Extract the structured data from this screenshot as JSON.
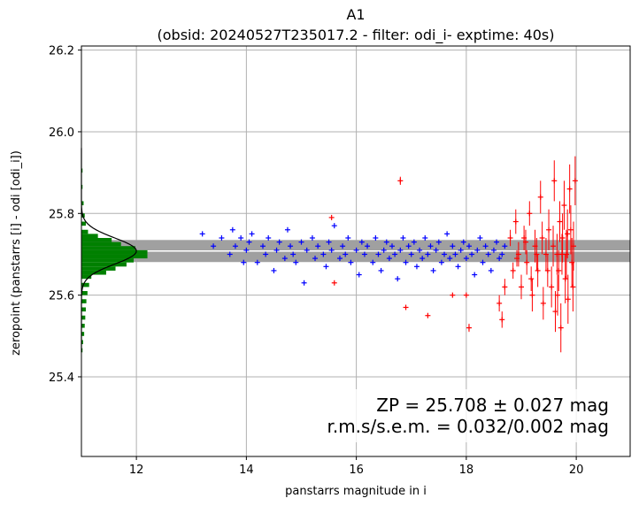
{
  "chart_data": {
    "type": "scatter",
    "title": "A1",
    "subtitle": "(obsid: 20240527T235017.2 - filter: odi_i- exptime: 40s)",
    "xlabel": "panstarrs magnitude in i",
    "ylabel": "zeropoint (panstarrs [i] - odi [odi_i])",
    "xlim": [
      11.0,
      20.98
    ],
    "ylim": [
      25.205,
      26.21
    ],
    "xticks": [
      "12",
      "14",
      "16",
      "18",
      "20"
    ],
    "yticks": [
      "25.4",
      "25.6",
      "25.8",
      "26.0",
      "26.2"
    ],
    "xtick_values": [
      12,
      14,
      16,
      18,
      20
    ],
    "ytick_values": [
      25.4,
      25.6,
      25.8,
      26.0,
      26.2
    ],
    "grid": true,
    "zeropoint": 25.708,
    "zeropoint_band": [
      25.681,
      25.735
    ],
    "annotation_lines": [
      "ZP = 25.708 ± 0.027 mag",
      "r.m.s/s.e.m. = 0.032/0.002 mag"
    ],
    "colors": {
      "bright_stars": "#0000ff",
      "faint_stars": "#ff0000",
      "histogram": "#008000",
      "band": "#a0a0a0",
      "zp_line": "#ffffff",
      "gaussian": "#000000",
      "grid": "#b0b0b0"
    },
    "histogram": {
      "bin_width": 0.01,
      "bins": [
        {
          "y": 25.46,
          "count": 0.02
        },
        {
          "y": 25.48,
          "count": 0.03
        },
        {
          "y": 25.5,
          "count": 0.05
        },
        {
          "y": 25.52,
          "count": 0.06
        },
        {
          "y": 25.54,
          "count": 0.07
        },
        {
          "y": 25.56,
          "count": 0.08
        },
        {
          "y": 25.58,
          "count": 0.09
        },
        {
          "y": 25.6,
          "count": 0.11
        },
        {
          "y": 25.62,
          "count": 0.14
        },
        {
          "y": 25.64,
          "count": 0.18
        },
        {
          "y": 25.65,
          "count": 0.45
        },
        {
          "y": 25.66,
          "count": 0.62
        },
        {
          "y": 25.67,
          "count": 0.82
        },
        {
          "y": 25.68,
          "count": 0.95
        },
        {
          "y": 25.69,
          "count": 1.2
        },
        {
          "y": 25.7,
          "count": 1.2
        },
        {
          "y": 25.71,
          "count": 0.98
        },
        {
          "y": 25.72,
          "count": 0.72
        },
        {
          "y": 25.73,
          "count": 0.55
        },
        {
          "y": 25.74,
          "count": 0.3
        },
        {
          "y": 25.75,
          "count": 0.12
        },
        {
          "y": 25.77,
          "count": 0.08
        },
        {
          "y": 25.79,
          "count": 0.06
        },
        {
          "y": 25.82,
          "count": 0.04
        },
        {
          "y": 25.86,
          "count": 0.02
        },
        {
          "y": 25.9,
          "count": 0.02
        }
      ]
    },
    "series": [
      {
        "color": "#0000ff",
        "points": [
          [
            13.2,
            25.75
          ],
          [
            13.4,
            25.72
          ],
          [
            13.55,
            25.74
          ],
          [
            13.7,
            25.7
          ],
          [
            13.75,
            25.76
          ],
          [
            13.8,
            25.72
          ],
          [
            13.9,
            25.74
          ],
          [
            13.95,
            25.68
          ],
          [
            14.0,
            25.71
          ],
          [
            14.05,
            25.73
          ],
          [
            14.1,
            25.75
          ],
          [
            14.2,
            25.68
          ],
          [
            14.3,
            25.72
          ],
          [
            14.35,
            25.7
          ],
          [
            14.4,
            25.74
          ],
          [
            14.5,
            25.66
          ],
          [
            14.55,
            25.71
          ],
          [
            14.6,
            25.73
          ],
          [
            14.7,
            25.69
          ],
          [
            14.75,
            25.76
          ],
          [
            14.8,
            25.72
          ],
          [
            14.85,
            25.7
          ],
          [
            14.9,
            25.68
          ],
          [
            15.0,
            25.73
          ],
          [
            15.05,
            25.63
          ],
          [
            15.1,
            25.71
          ],
          [
            15.2,
            25.74
          ],
          [
            15.25,
            25.69
          ],
          [
            15.3,
            25.72
          ],
          [
            15.4,
            25.7
          ],
          [
            15.45,
            25.67
          ],
          [
            15.5,
            25.73
          ],
          [
            15.55,
            25.71
          ],
          [
            15.6,
            25.77
          ],
          [
            15.7,
            25.69
          ],
          [
            15.75,
            25.72
          ],
          [
            15.8,
            25.7
          ],
          [
            15.85,
            25.74
          ],
          [
            15.9,
            25.68
          ],
          [
            16.0,
            25.71
          ],
          [
            16.05,
            25.65
          ],
          [
            16.1,
            25.73
          ],
          [
            16.15,
            25.7
          ],
          [
            16.2,
            25.72
          ],
          [
            16.3,
            25.68
          ],
          [
            16.35,
            25.74
          ],
          [
            16.4,
            25.7
          ],
          [
            16.45,
            25.66
          ],
          [
            16.5,
            25.71
          ],
          [
            16.55,
            25.73
          ],
          [
            16.6,
            25.69
          ],
          [
            16.65,
            25.72
          ],
          [
            16.7,
            25.7
          ],
          [
            16.75,
            25.64
          ],
          [
            16.8,
            25.71
          ],
          [
            16.85,
            25.74
          ],
          [
            16.9,
            25.68
          ],
          [
            16.95,
            25.72
          ],
          [
            17.0,
            25.7
          ],
          [
            17.05,
            25.73
          ],
          [
            17.1,
            25.67
          ],
          [
            17.15,
            25.71
          ],
          [
            17.2,
            25.69
          ],
          [
            17.25,
            25.74
          ],
          [
            17.3,
            25.7
          ],
          [
            17.35,
            25.72
          ],
          [
            17.4,
            25.66
          ],
          [
            17.45,
            25.71
          ],
          [
            17.5,
            25.73
          ],
          [
            17.55,
            25.68
          ],
          [
            17.6,
            25.7
          ],
          [
            17.65,
            25.75
          ],
          [
            17.7,
            25.69
          ],
          [
            17.75,
            25.72
          ],
          [
            17.8,
            25.7
          ],
          [
            17.85,
            25.67
          ],
          [
            17.9,
            25.71
          ],
          [
            17.95,
            25.73
          ],
          [
            18.0,
            25.69
          ],
          [
            18.05,
            25.72
          ],
          [
            18.1,
            25.7
          ],
          [
            18.15,
            25.65
          ],
          [
            18.2,
            25.71
          ],
          [
            18.25,
            25.74
          ],
          [
            18.3,
            25.68
          ],
          [
            18.35,
            25.72
          ],
          [
            18.4,
            25.7
          ],
          [
            18.45,
            25.66
          ],
          [
            18.5,
            25.71
          ],
          [
            18.55,
            25.73
          ],
          [
            18.6,
            25.69
          ],
          [
            18.65,
            25.7
          ],
          [
            18.7,
            25.72
          ]
        ]
      },
      {
        "color": "#ff0000",
        "points": [
          [
            15.55,
            25.79,
            0.0
          ],
          [
            15.6,
            25.63,
            0.0
          ],
          [
            16.8,
            25.88,
            0.01
          ],
          [
            16.9,
            25.57,
            0.0
          ],
          [
            17.3,
            25.55,
            0.0
          ],
          [
            17.75,
            25.6,
            0.0
          ],
          [
            18.0,
            25.6,
            0.0
          ],
          [
            18.05,
            25.52,
            0.01
          ],
          [
            18.6,
            25.58,
            0.02
          ],
          [
            18.65,
            25.54,
            0.02
          ],
          [
            18.7,
            25.62,
            0.02
          ],
          [
            18.8,
            25.74,
            0.02
          ],
          [
            18.85,
            25.66,
            0.02
          ],
          [
            18.9,
            25.78,
            0.03
          ],
          [
            18.95,
            25.7,
            0.03
          ],
          [
            19.0,
            25.62,
            0.03
          ],
          [
            19.05,
            25.74,
            0.03
          ],
          [
            19.1,
            25.68,
            0.03
          ],
          [
            19.15,
            25.8,
            0.03
          ],
          [
            19.2,
            25.6,
            0.04
          ],
          [
            19.25,
            25.72,
            0.04
          ],
          [
            19.3,
            25.66,
            0.04
          ],
          [
            19.35,
            25.84,
            0.04
          ],
          [
            19.4,
            25.58,
            0.04
          ],
          [
            19.45,
            25.7,
            0.04
          ],
          [
            19.5,
            25.76,
            0.05
          ],
          [
            19.55,
            25.62,
            0.05
          ],
          [
            19.6,
            25.88,
            0.05
          ],
          [
            19.62,
            25.56,
            0.05
          ],
          [
            19.65,
            25.7,
            0.05
          ],
          [
            19.68,
            25.66,
            0.05
          ],
          [
            19.7,
            25.78,
            0.05
          ],
          [
            19.72,
            25.52,
            0.06
          ],
          [
            19.75,
            25.74,
            0.06
          ],
          [
            19.78,
            25.82,
            0.06
          ],
          [
            19.8,
            25.64,
            0.06
          ],
          [
            19.82,
            25.7,
            0.06
          ],
          [
            19.85,
            25.59,
            0.06
          ],
          [
            19.88,
            25.86,
            0.06
          ],
          [
            19.9,
            25.76,
            0.06
          ],
          [
            19.92,
            25.68,
            0.06
          ],
          [
            19.95,
            25.72,
            0.06
          ],
          [
            19.98,
            25.88,
            0.06
          ],
          [
            18.92,
            25.69,
            0.02
          ],
          [
            19.08,
            25.73,
            0.03
          ],
          [
            19.18,
            25.64,
            0.03
          ],
          [
            19.28,
            25.7,
            0.04
          ],
          [
            19.38,
            25.74,
            0.04
          ],
          [
            19.48,
            25.66,
            0.04
          ],
          [
            19.58,
            25.72,
            0.05
          ],
          [
            19.66,
            25.6,
            0.05
          ],
          [
            19.74,
            25.7,
            0.05
          ],
          [
            19.84,
            25.75,
            0.06
          ],
          [
            19.94,
            25.62,
            0.06
          ]
        ]
      }
    ]
  }
}
